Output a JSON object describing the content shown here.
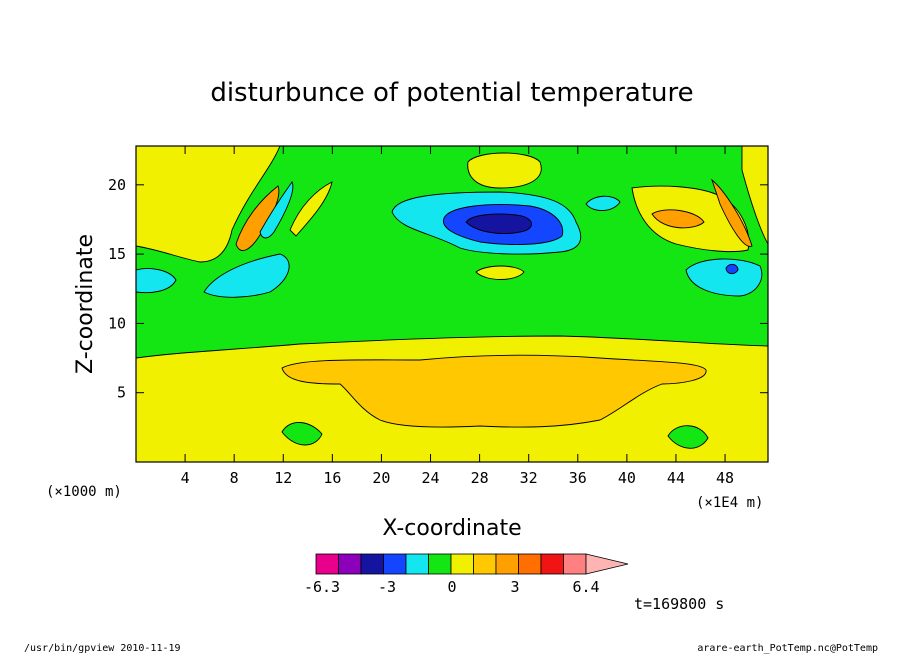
{
  "chart_data": {
    "type": "heatmap",
    "title": "disturbunce of potential temperature",
    "xlabel": "X-coordinate",
    "ylabel": "Z-coordinate",
    "x_unit_left": "(×1000 m)",
    "x_unit_right": "(×1E4 m)",
    "x_ticks": [
      "4",
      "8",
      "12",
      "16",
      "20",
      "24",
      "28",
      "32",
      "36",
      "40",
      "44",
      "48"
    ],
    "x_tick_values": [
      4,
      8,
      12,
      16,
      20,
      24,
      28,
      32,
      36,
      40,
      44,
      48
    ],
    "y_ticks": [
      "5",
      "10",
      "15",
      "20"
    ],
    "y_tick_values": [
      5,
      10,
      15,
      20
    ],
    "xlim": [
      0,
      51.5
    ],
    "ylim": [
      0,
      22.8
    ],
    "colorbar": {
      "labels": [
        "-6.3",
        "-3",
        "0",
        "3",
        "6.4"
      ],
      "colors": [
        "#e8008c",
        "#8c00bc",
        "#1414a0",
        "#1446ff",
        "#14e6f0",
        "#14e614",
        "#f0f000",
        "#ffc800",
        "#ffa000",
        "#ff6e00",
        "#f01414",
        "#ff8080",
        "#ffb4b4"
      ]
    },
    "time_label": "t=169800 s"
  },
  "footer": {
    "left": "/usr/bin/gpview  2010-11-19",
    "right": "arare-earth_PotTemp.nc@PotTemp"
  }
}
